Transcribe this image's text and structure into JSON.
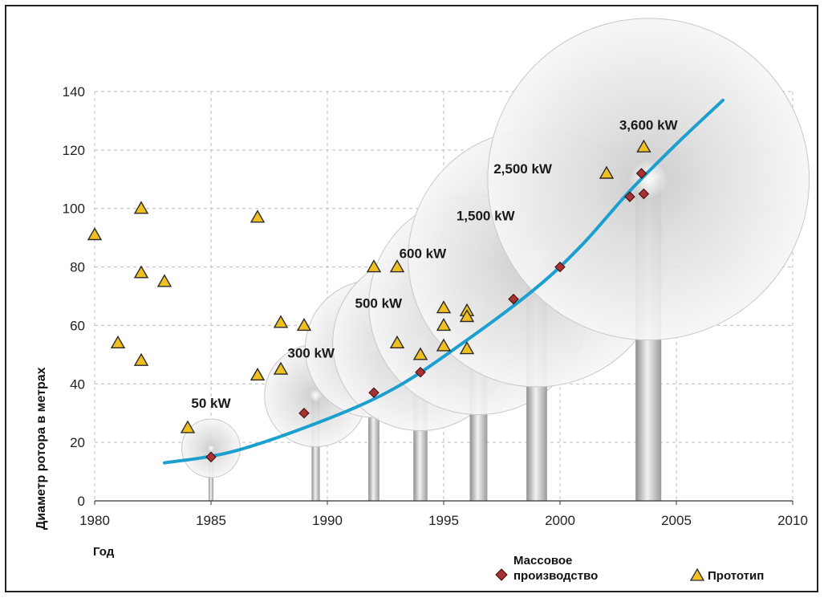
{
  "chart_data": {
    "type": "scatter",
    "xlabel": "Год",
    "ylabel": "Диаметр ротора в метрах",
    "xlim": [
      1980,
      2010
    ],
    "ylim": [
      0,
      140
    ],
    "x_ticks": [
      1980,
      1985,
      1990,
      1995,
      2000,
      2005,
      2010
    ],
    "y_ticks": [
      0,
      20,
      40,
      60,
      80,
      100,
      120,
      140
    ],
    "grid": "dashed horizontal and vertical",
    "colors": {
      "trend": "#1a9fcf",
      "mass": "#b03030",
      "prototype": "#f0c020",
      "disc": "#d8d8d8",
      "tower": "#b5b5b5"
    },
    "series": [
      {
        "name": "Массовое производство",
        "marker": "diamond",
        "points": [
          {
            "x": 1985,
            "y": 15
          },
          {
            "x": 1989,
            "y": 30
          },
          {
            "x": 1992,
            "y": 37
          },
          {
            "x": 1994,
            "y": 44
          },
          {
            "x": 1998,
            "y": 69
          },
          {
            "x": 2000,
            "y": 80
          },
          {
            "x": 2003,
            "y": 104
          },
          {
            "x": 2003.5,
            "y": 112
          },
          {
            "x": 2003.6,
            "y": 105
          }
        ]
      },
      {
        "name": "Прототип",
        "marker": "triangle",
        "points": [
          {
            "x": 1980,
            "y": 91
          },
          {
            "x": 1981,
            "y": 54
          },
          {
            "x": 1982,
            "y": 100
          },
          {
            "x": 1982,
            "y": 78
          },
          {
            "x": 1982,
            "y": 48
          },
          {
            "x": 1983,
            "y": 75
          },
          {
            "x": 1984,
            "y": 25
          },
          {
            "x": 1987,
            "y": 97
          },
          {
            "x": 1987,
            "y": 43
          },
          {
            "x": 1988,
            "y": 61
          },
          {
            "x": 1988,
            "y": 45
          },
          {
            "x": 1989,
            "y": 60
          },
          {
            "x": 1992,
            "y": 80
          },
          {
            "x": 1993,
            "y": 80
          },
          {
            "x": 1993,
            "y": 54
          },
          {
            "x": 1994,
            "y": 50
          },
          {
            "x": 1995,
            "y": 66
          },
          {
            "x": 1995,
            "y": 60
          },
          {
            "x": 1995,
            "y": 53
          },
          {
            "x": 1996,
            "y": 65
          },
          {
            "x": 1996,
            "y": 63
          },
          {
            "x": 1996,
            "y": 52
          },
          {
            "x": 2002,
            "y": 112
          },
          {
            "x": 2003.6,
            "y": 121
          }
        ]
      }
    ],
    "trend": [
      {
        "x": 1983,
        "y": 13
      },
      {
        "x": 1986,
        "y": 17
      },
      {
        "x": 1990,
        "y": 28
      },
      {
        "x": 1993,
        "y": 39
      },
      {
        "x": 1996,
        "y": 55
      },
      {
        "x": 1999,
        "y": 73
      },
      {
        "x": 2001,
        "y": 88
      },
      {
        "x": 2003,
        "y": 106
      },
      {
        "x": 2005,
        "y": 122
      },
      {
        "x": 2007,
        "y": 137
      }
    ],
    "turbines": [
      {
        "label": "50 kW",
        "x": 1985,
        "y": 18,
        "d": 20
      },
      {
        "label": "300 kW",
        "x": 1989.5,
        "y": 36,
        "d": 35
      },
      {
        "label": "500 kW",
        "x": 1992,
        "y": 52,
        "d": 47
      },
      {
        "label": "600 kW",
        "x": 1994,
        "y": 54,
        "d": 60
      },
      {
        "label": "1,500 kW",
        "x": 1996.5,
        "y": 67,
        "d": 75
      },
      {
        "label": "2,500 kW",
        "x": 1999,
        "y": 83,
        "d": 88
      },
      {
        "label": "3,600 kW",
        "x": 2003.8,
        "y": 110,
        "d": 110
      }
    ]
  },
  "legend": {
    "mass_label_line1": "Массовое",
    "mass_label_line2": "производство",
    "prototype_label": "Прототип"
  }
}
